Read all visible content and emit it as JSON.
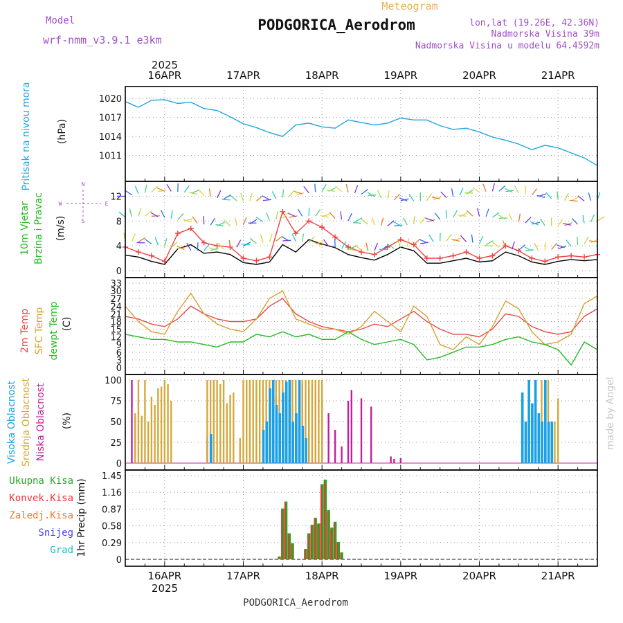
{
  "header": {
    "product": "Meteogram",
    "station": "PODGORICA_Aerodrom",
    "model_label": "Model",
    "model_name": "wrf-nmm_v3.9.1 e3km",
    "lonlat": "lon,lat (19.26E, 42.36N)",
    "elevation": "Nadmorska Visina 39m",
    "model_elevation": "Nadmorska Visina u modelu 64.4592m",
    "footer_station": "PODGORICA_Aerodrom",
    "credit": "made by Angel",
    "year": "2025"
  },
  "colors": {
    "pressure": "#1fa6e0",
    "wind": "#000000",
    "gust": "#ee4040",
    "temp2m": "#e84848",
    "sfc": "#d8a030",
    "dew": "#22bb22",
    "high": "#1aa0e6",
    "mid": "#d4a83a",
    "low": "#c0209a",
    "total": "#22aa22",
    "conv": "#ee3333",
    "frozen": "#f07a28",
    "snow": "#4444ee",
    "grad": "#22bbbb",
    "accent": "#a050c8"
  },
  "time_axis": {
    "days": [
      "16APR",
      "17APR",
      "18APR",
      "19APR",
      "20APR",
      "21APR"
    ],
    "start_hour": 0,
    "end_hour": 144
  },
  "chart_data": [
    {
      "type": "line",
      "panel": "pressure",
      "title": "Pritisak na nivou mora",
      "ylabel": "(hPa)",
      "ylim": [
        1008,
        1021
      ],
      "yticks": [
        1011,
        1014,
        1017,
        1020
      ],
      "series": [
        {
          "name": "MSLP",
          "x": [
            0,
            4,
            8,
            12,
            16,
            20,
            24,
            28,
            32,
            36,
            40,
            44,
            48,
            52,
            56,
            60,
            64,
            68,
            72,
            76,
            80,
            84,
            88,
            92,
            96,
            100,
            104,
            108,
            112,
            116,
            120,
            124,
            128,
            132,
            136,
            140,
            144
          ],
          "values": [
            1019.5,
            1018.6,
            1019.7,
            1019.8,
            1019.2,
            1019.4,
            1018.4,
            1018.1,
            1017.1,
            1016.0,
            1015.4,
            1014.6,
            1014.0,
            1015.8,
            1016.1,
            1015.5,
            1015.3,
            1016.6,
            1016.2,
            1015.8,
            1016.1,
            1016.9,
            1016.6,
            1016.6,
            1015.7,
            1015.1,
            1015.3,
            1014.7,
            1013.9,
            1013.4,
            1012.8,
            1011.9,
            1012.6,
            1012.2,
            1011.4,
            1010.6,
            1009.4
          ]
        }
      ]
    },
    {
      "type": "line",
      "panel": "wind",
      "title": "10m Vjetar Brzina i Pravac",
      "ylabel": "(m/s)",
      "ylim": [
        0,
        13.5
      ],
      "yticks": [
        0,
        4,
        8,
        12
      ],
      "compass": "W <- -> E, N ^ S",
      "series": [
        {
          "name": "Brzina",
          "x": [
            0,
            4,
            8,
            12,
            16,
            20,
            24,
            28,
            32,
            36,
            40,
            44,
            48,
            52,
            56,
            60,
            64,
            68,
            72,
            76,
            80,
            84,
            88,
            92,
            96,
            100,
            104,
            108,
            112,
            116,
            120,
            124,
            128,
            132,
            136,
            140,
            144
          ],
          "values": [
            2.5,
            2.2,
            1.5,
            1.0,
            3.5,
            4.2,
            2.8,
            3.0,
            2.6,
            1.3,
            1.0,
            1.4,
            4.2,
            3.0,
            5.0,
            4.3,
            3.7,
            2.6,
            2.1,
            1.7,
            2.6,
            3.8,
            3.2,
            1.2,
            1.2,
            1.6,
            2.0,
            1.4,
            1.6,
            3.0,
            2.4,
            1.4,
            1.0,
            1.5,
            1.8,
            1.6,
            1.8
          ]
        },
        {
          "name": "Udari",
          "x": [
            0,
            4,
            8,
            12,
            16,
            20,
            24,
            28,
            32,
            36,
            40,
            44,
            48,
            52,
            56,
            60,
            64,
            68,
            72,
            76,
            80,
            84,
            88,
            92,
            96,
            100,
            104,
            108,
            112,
            116,
            120,
            124,
            128,
            132,
            136,
            140,
            144
          ],
          "values": [
            3.8,
            3.0,
            2.4,
            1.5,
            6.0,
            6.8,
            4.5,
            4.0,
            3.8,
            2.0,
            1.6,
            2.2,
            9.5,
            6.0,
            8.0,
            7.0,
            5.4,
            3.8,
            3.0,
            2.6,
            3.8,
            5.0,
            4.2,
            2.0,
            2.0,
            2.4,
            3.0,
            2.0,
            2.4,
            4.0,
            3.2,
            2.0,
            1.5,
            2.2,
            2.4,
            2.2,
            2.6
          ]
        }
      ]
    },
    {
      "type": "line",
      "panel": "temperature",
      "title": "2m Temp / SFC Temp / dewpt Temp",
      "ylabel": "(C)",
      "ylim": [
        0,
        33
      ],
      "yticks": [
        0,
        3,
        6,
        9,
        12,
        15,
        18,
        21,
        24,
        27,
        30,
        33
      ],
      "series": [
        {
          "name": "2m Temp",
          "x": [
            0,
            4,
            8,
            12,
            16,
            20,
            24,
            28,
            32,
            36,
            40,
            44,
            48,
            52,
            56,
            60,
            64,
            68,
            72,
            76,
            80,
            84,
            88,
            92,
            96,
            100,
            104,
            108,
            112,
            116,
            120,
            124,
            128,
            132,
            136,
            140,
            144
          ],
          "values": [
            20,
            19,
            17,
            16,
            19,
            24,
            21,
            19,
            18,
            18,
            19,
            24,
            27,
            21,
            18,
            16,
            15,
            14,
            15,
            17,
            16,
            19,
            22,
            18,
            15,
            13,
            13,
            12,
            15,
            21,
            20,
            16,
            14,
            13,
            14,
            20,
            23
          ]
        },
        {
          "name": "SFC Temp",
          "x": [
            0,
            4,
            8,
            12,
            16,
            20,
            24,
            28,
            32,
            36,
            40,
            44,
            48,
            52,
            56,
            60,
            64,
            68,
            72,
            76,
            80,
            84,
            88,
            92,
            96,
            100,
            104,
            108,
            112,
            116,
            120,
            124,
            128,
            132,
            136,
            140,
            144
          ],
          "values": [
            24,
            18,
            14,
            13,
            22,
            29,
            21,
            17,
            15,
            14,
            19,
            27,
            30,
            19,
            17,
            15,
            15,
            13,
            16,
            22,
            18,
            14,
            24,
            20,
            9,
            7,
            12,
            9,
            16,
            26,
            23,
            14,
            9,
            10,
            13,
            25,
            28
          ]
        },
        {
          "name": "dewpt Temp",
          "x": [
            0,
            4,
            8,
            12,
            16,
            20,
            24,
            28,
            32,
            36,
            40,
            44,
            48,
            52,
            56,
            60,
            64,
            68,
            72,
            76,
            80,
            84,
            88,
            92,
            96,
            100,
            104,
            108,
            112,
            116,
            120,
            124,
            128,
            132,
            136,
            140,
            144
          ],
          "values": [
            13,
            12,
            11,
            11,
            10,
            10,
            9,
            8,
            10,
            10,
            13,
            12,
            14,
            12,
            13,
            11,
            11,
            14,
            11,
            9,
            10,
            11,
            9,
            3,
            4,
            6,
            8,
            8,
            9,
            11,
            12,
            10,
            9,
            7,
            1,
            10,
            7
          ]
        }
      ]
    },
    {
      "type": "bar",
      "panel": "clouds",
      "title": "Visoka / Srednja / Niska Oblacnost",
      "ylabel": "(%)",
      "ylim": [
        0,
        100
      ],
      "yticks": [
        0,
        25,
        50,
        75,
        100
      ],
      "series": [
        {
          "name": "Niska Oblacnost",
          "x": [
            2,
            25,
            46,
            48,
            50,
            52,
            54,
            56,
            58,
            60,
            62,
            64,
            66,
            68,
            69,
            72,
            75,
            81,
            82,
            84
          ],
          "values": [
            100,
            30,
            80,
            90,
            100,
            100,
            95,
            90,
            85,
            75,
            60,
            40,
            20,
            75,
            88,
            78,
            68,
            8,
            5,
            6
          ]
        },
        {
          "name": "Srednja Oblacnost",
          "x": [
            3,
            4,
            5,
            6,
            7,
            8,
            9,
            10,
            11,
            12,
            13,
            14,
            25,
            26,
            27,
            28,
            29,
            30,
            31,
            32,
            33,
            35,
            36,
            37,
            38,
            39,
            40,
            41,
            42,
            43,
            44,
            45,
            46,
            47,
            48,
            49,
            50,
            51,
            52,
            53,
            54,
            55,
            56,
            57,
            58,
            59,
            60,
            126,
            127,
            128,
            129,
            130,
            131,
            132
          ],
          "values": [
            60,
            100,
            57,
            100,
            50,
            80,
            70,
            90,
            92,
            100,
            95,
            75,
            100,
            100,
            100,
            100,
            95,
            100,
            72,
            82,
            85,
            30,
            100,
            100,
            100,
            100,
            100,
            100,
            100,
            100,
            100,
            100,
            100,
            100,
            100,
            100,
            100,
            100,
            100,
            100,
            100,
            100,
            100,
            100,
            100,
            100,
            100,
            48,
            100,
            40,
            100,
            40,
            50,
            78
          ]
        },
        {
          "name": "Visoka Oblacnost",
          "x": [
            26,
            42,
            43,
            44,
            45,
            46,
            47,
            48,
            49,
            50,
            51,
            52,
            53,
            54,
            55,
            121,
            122,
            123,
            124,
            125,
            126,
            127,
            128,
            129,
            130
          ],
          "values": [
            35,
            40,
            50,
            90,
            100,
            70,
            60,
            85,
            98,
            100,
            50,
            60,
            100,
            45,
            30,
            85,
            50,
            100,
            72,
            100,
            60,
            50,
            100,
            50,
            50
          ]
        }
      ]
    },
    {
      "type": "bar",
      "panel": "precipitation",
      "title": "1hr Precip",
      "ylabel": "1hr Precip (mm)",
      "ylim": [
        0,
        1.45
      ],
      "yticks": [
        0,
        0.29,
        0.58,
        0.87,
        1.16,
        1.45
      ],
      "legend": [
        "Ukupna Kisa",
        "Konvek.Kisa",
        "Zaledj.Kisa",
        "Snijeg",
        "Grad"
      ],
      "series": [
        {
          "name": "Ukupna Kisa",
          "x": [
            47,
            48,
            49,
            50,
            51,
            55,
            56,
            57,
            58,
            59,
            60,
            61,
            62,
            63,
            64,
            65,
            66
          ],
          "values": [
            0.05,
            0.88,
            1.0,
            0.45,
            0.28,
            0.18,
            0.45,
            0.6,
            0.72,
            0.62,
            1.3,
            1.38,
            0.85,
            0.55,
            0.65,
            0.3,
            0.12
          ]
        },
        {
          "name": "Konvek.Kisa",
          "x": [
            47,
            48,
            49,
            50,
            51,
            55,
            56,
            57,
            58,
            59,
            60,
            61,
            62,
            63,
            64,
            65,
            66
          ],
          "values": [
            0.03,
            0.86,
            0.98,
            0.43,
            0.26,
            0.16,
            0.42,
            0.58,
            0.7,
            0.6,
            1.26,
            1.35,
            0.82,
            0.52,
            0.62,
            0.28,
            0.1
          ]
        }
      ]
    }
  ]
}
